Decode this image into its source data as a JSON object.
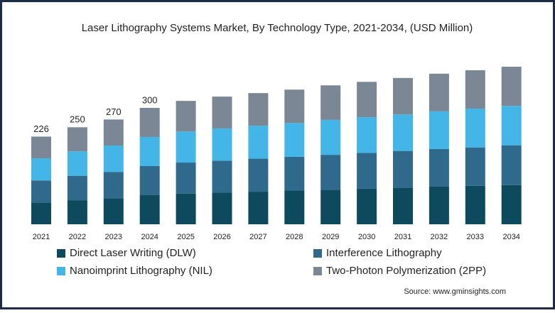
{
  "chart_data": {
    "type": "stacked-bar",
    "title": "Laser Lithography Systems Market, By Technology Type, 2021-2034, (USD Million)",
    "categories": [
      "2021",
      "2022",
      "2023",
      "2024",
      "2025",
      "2026",
      "2027",
      "2028",
      "2029",
      "2030",
      "2031",
      "2032",
      "2033",
      "2034"
    ],
    "series": [
      {
        "name": "Direct Laser Writing (DLW)",
        "color": "#0d4a5e",
        "values": [
          56,
          62,
          67,
          75,
          79,
          82,
          84,
          87,
          89,
          92,
          94,
          97,
          99,
          101
        ]
      },
      {
        "name": "Interference Lithography",
        "color": "#2f6a8c",
        "values": [
          57,
          63,
          68,
          75,
          80,
          82,
          85,
          87,
          90,
          92,
          95,
          97,
          99,
          102
        ]
      },
      {
        "name": "Nanoimprint Lithography (NIL)",
        "color": "#43b5e6",
        "values": [
          57,
          63,
          68,
          75,
          80,
          83,
          85,
          87,
          90,
          92,
          94,
          97,
          100,
          102
        ]
      },
      {
        "name": "Two-Photon Polymerization (2PP)",
        "color": "#7b8794",
        "values": [
          56,
          62,
          67,
          75,
          79,
          82,
          84,
          86,
          89,
          91,
          94,
          97,
          99,
          101
        ]
      }
    ],
    "totals": [
      226,
      250,
      270,
      300
    ],
    "source": "Source: www.gminsights.com"
  }
}
